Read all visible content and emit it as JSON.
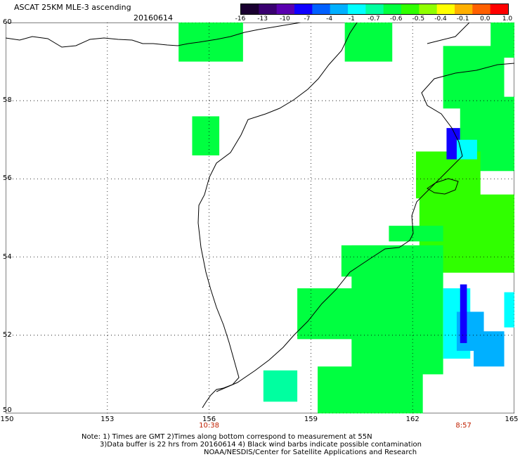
{
  "header": {
    "title": "ASCAT 25KM MLE-3 ascending",
    "date": "20160614"
  },
  "colorbar": {
    "labels": [
      "-16",
      "-13",
      "-10",
      "-7",
      "-4",
      "-1",
      "-0.7",
      "-0.6",
      "-0.5",
      "-0.4",
      "-0.1",
      "0.0",
      "1.0"
    ],
    "colors": [
      "#1a0030",
      "#3a0070",
      "#5a00b0",
      "#1000ff",
      "#0060ff",
      "#00b0ff",
      "#00ffff",
      "#00ffa0",
      "#00ff40",
      "#30ff00",
      "#90ff00",
      "#ffff00",
      "#ffb000",
      "#ff6000",
      "#ff0000"
    ]
  },
  "axes": {
    "lat_labels": [
      "60",
      "58",
      "56",
      "54",
      "52",
      "50"
    ],
    "lon_labels": [
      "150",
      "153",
      "156",
      "159",
      "162",
      "165"
    ],
    "lat_range": [
      50,
      60
    ],
    "lon_range": [
      150,
      165
    ],
    "grid": "dotted"
  },
  "times": [
    {
      "label": "10:38",
      "lon": 156
    },
    {
      "label": "8:57",
      "lon": 163.5
    }
  ],
  "notes": {
    "line1": "Note: 1) Times are GMT 2)Times along bottom correspond to measurement at 55N",
    "line2": "3)Data buffer is 22 hrs from 20160614 4) Black wind barbs indicate possible contamination",
    "line3": "NOAA/NESDIS/Center for Satellite Applications and Research"
  },
  "data_patches": [
    {
      "lon": [
        155.1,
        157.0
      ],
      "lat": [
        59.0,
        60.0
      ],
      "color": "#00ff40"
    },
    {
      "lon": [
        160.0,
        161.4
      ],
      "lat": [
        59.0,
        60.0
      ],
      "color": "#00ff40"
    },
    {
      "lon": [
        155.5,
        156.3
      ],
      "lat": [
        56.6,
        57.6
      ],
      "color": "#00ff40"
    },
    {
      "lon": [
        164.3,
        165.0
      ],
      "lat": [
        59.1,
        60.0
      ],
      "color": "#00ff40"
    },
    {
      "lon": [
        162.9,
        164.7
      ],
      "lat": [
        57.8,
        59.4
      ],
      "color": "#00ff40"
    },
    {
      "lon": [
        163.4,
        165.0
      ],
      "lat": [
        56.2,
        58.1
      ],
      "color": "#00ff40"
    },
    {
      "lon": [
        162.1,
        164.0
      ],
      "lat": [
        55.5,
        56.7
      ],
      "color": "#30ff00"
    },
    {
      "lon": [
        162.2,
        165.0
      ],
      "lat": [
        53.6,
        55.6
      ],
      "color": "#30ff00"
    },
    {
      "lon": [
        161.3,
        162.9
      ],
      "lat": [
        54.4,
        54.8
      ],
      "color": "#00ff40"
    },
    {
      "lon": [
        160.2,
        162.9
      ],
      "lat": [
        51.0,
        54.3
      ],
      "color": "#00ff40"
    },
    {
      "lon": [
        159.9,
        161.2
      ],
      "lat": [
        53.5,
        54.3
      ],
      "color": "#00ff40"
    },
    {
      "lon": [
        158.6,
        160.7
      ],
      "lat": [
        51.9,
        53.2
      ],
      "color": "#00ff40"
    },
    {
      "lon": [
        159.2,
        162.3
      ],
      "lat": [
        50.0,
        51.2
      ],
      "color": "#00ff40"
    },
    {
      "lon": [
        157.6,
        158.6
      ],
      "lat": [
        50.3,
        51.1
      ],
      "color": "#00ffa0"
    },
    {
      "lon": [
        162.9,
        163.7
      ],
      "lat": [
        51.4,
        53.2
      ],
      "color": "#00ffff"
    },
    {
      "lon": [
        163.3,
        164.1
      ],
      "lat": [
        51.6,
        52.6
      ],
      "color": "#00b0ff"
    },
    {
      "lon": [
        163.8,
        164.7
      ],
      "lat": [
        51.2,
        52.1
      ],
      "color": "#00b0ff"
    },
    {
      "lon": [
        163.4,
        163.6
      ],
      "lat": [
        51.8,
        53.3
      ],
      "color": "#1000ff"
    },
    {
      "lon": [
        164.7,
        165.0
      ],
      "lat": [
        52.2,
        53.1
      ],
      "color": "#00ffff"
    },
    {
      "lon": [
        163.0,
        163.4
      ],
      "lat": [
        56.5,
        57.3
      ],
      "color": "#1000ff"
    },
    {
      "lon": [
        163.3,
        163.9
      ],
      "lat": [
        56.5,
        57.0
      ],
      "color": "#00ffff"
    }
  ]
}
